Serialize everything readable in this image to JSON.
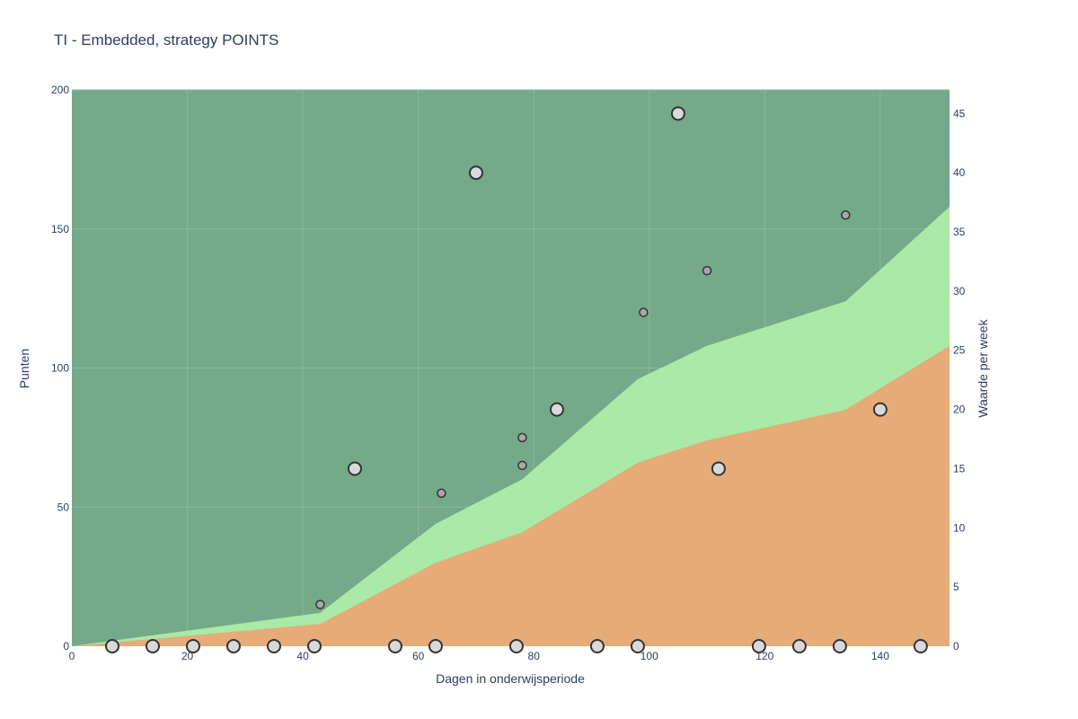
{
  "chart_data": {
    "type": "area",
    "title": "TI - Embedded, strategy POINTS",
    "xlabel": "Dagen in onderwijsperiode",
    "ylabel": "Punten",
    "y2label": "Waarde per week",
    "xlim": [
      0,
      152
    ],
    "ylim": [
      0,
      200
    ],
    "y2lim": [
      0,
      47
    ],
    "xticks": [
      0,
      20,
      40,
      60,
      80,
      100,
      120,
      140
    ],
    "yticks": [
      0,
      50,
      100,
      150,
      200
    ],
    "y2ticks": [
      0,
      5,
      10,
      15,
      20,
      25,
      30,
      35,
      40,
      45
    ],
    "grid": true,
    "colors": {
      "plot_background": "#74a98a",
      "upper_band": "#aae9a6",
      "lower_band": "#e6ab79",
      "gridline": "#8ab89b",
      "marker_fill": "#d9d9d9",
      "marker_fill_small": "#a8a8a8",
      "marker_stroke": "#333333"
    },
    "bands": {
      "x": [
        0,
        43,
        63,
        78,
        98,
        110,
        134,
        152
      ],
      "lower": [
        0,
        8,
        30,
        41,
        66,
        74,
        85,
        108
      ],
      "upper": [
        0,
        12,
        44,
        60,
        96,
        108,
        124,
        158
      ]
    },
    "weekly_points": {
      "x": [
        7,
        14,
        21,
        28,
        35,
        42,
        49,
        56,
        63,
        70,
        77,
        84,
        91,
        98,
        105,
        112,
        119,
        126,
        133,
        140,
        147
      ],
      "y": [
        0,
        0,
        0,
        0,
        0,
        0,
        15,
        0,
        0,
        40,
        0,
        20,
        0,
        0,
        45,
        15,
        0,
        0,
        0,
        20,
        0
      ]
    },
    "task_points": {
      "x": [
        43,
        64,
        78,
        78,
        99,
        110,
        134
      ],
      "y": [
        15,
        55,
        65,
        75,
        120,
        135,
        155
      ]
    }
  }
}
